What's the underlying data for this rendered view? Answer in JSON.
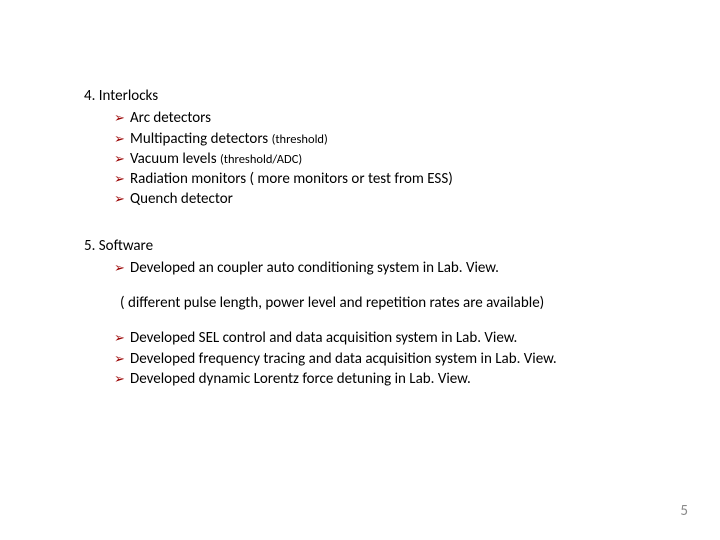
{
  "colors": {
    "bullet_marker": "#9a0000",
    "page_number": "#898989",
    "text": "#000000",
    "background": "#ffffff"
  },
  "typography": {
    "base_fontsize_pt": 15,
    "paren_fontsize_pt": 12.5,
    "pagenum_fontsize_pt": 15,
    "font_family": "Calibri"
  },
  "bullet_glyph": "➢",
  "section4": {
    "heading": "4. Interlocks",
    "items": [
      {
        "text": "Arc detectors",
        "paren": ""
      },
      {
        "text": "Multipacting detectors ",
        "paren": "(threshold)"
      },
      {
        "text": "Vacuum levels ",
        "paren": "(threshold/ADC)"
      },
      {
        "text": "Radiation monitors ( more monitors or test from ESS)",
        "paren": ""
      },
      {
        "text": "Quench detector",
        "paren": ""
      }
    ]
  },
  "section5": {
    "heading": "5. Software",
    "items": [
      {
        "text": "Developed an coupler auto conditioning system in Lab. View."
      },
      {
        "note": "( different pulse length, power level and repetition rates are available)"
      },
      {
        "text": "Developed SEL control  and data acquisition system in Lab. View."
      },
      {
        "text": "Developed frequency tracing and data acquisition system in Lab. View."
      },
      {
        "text": "Developed dynamic Lorentz force detuning in Lab. View."
      }
    ]
  },
  "page_number": "5"
}
